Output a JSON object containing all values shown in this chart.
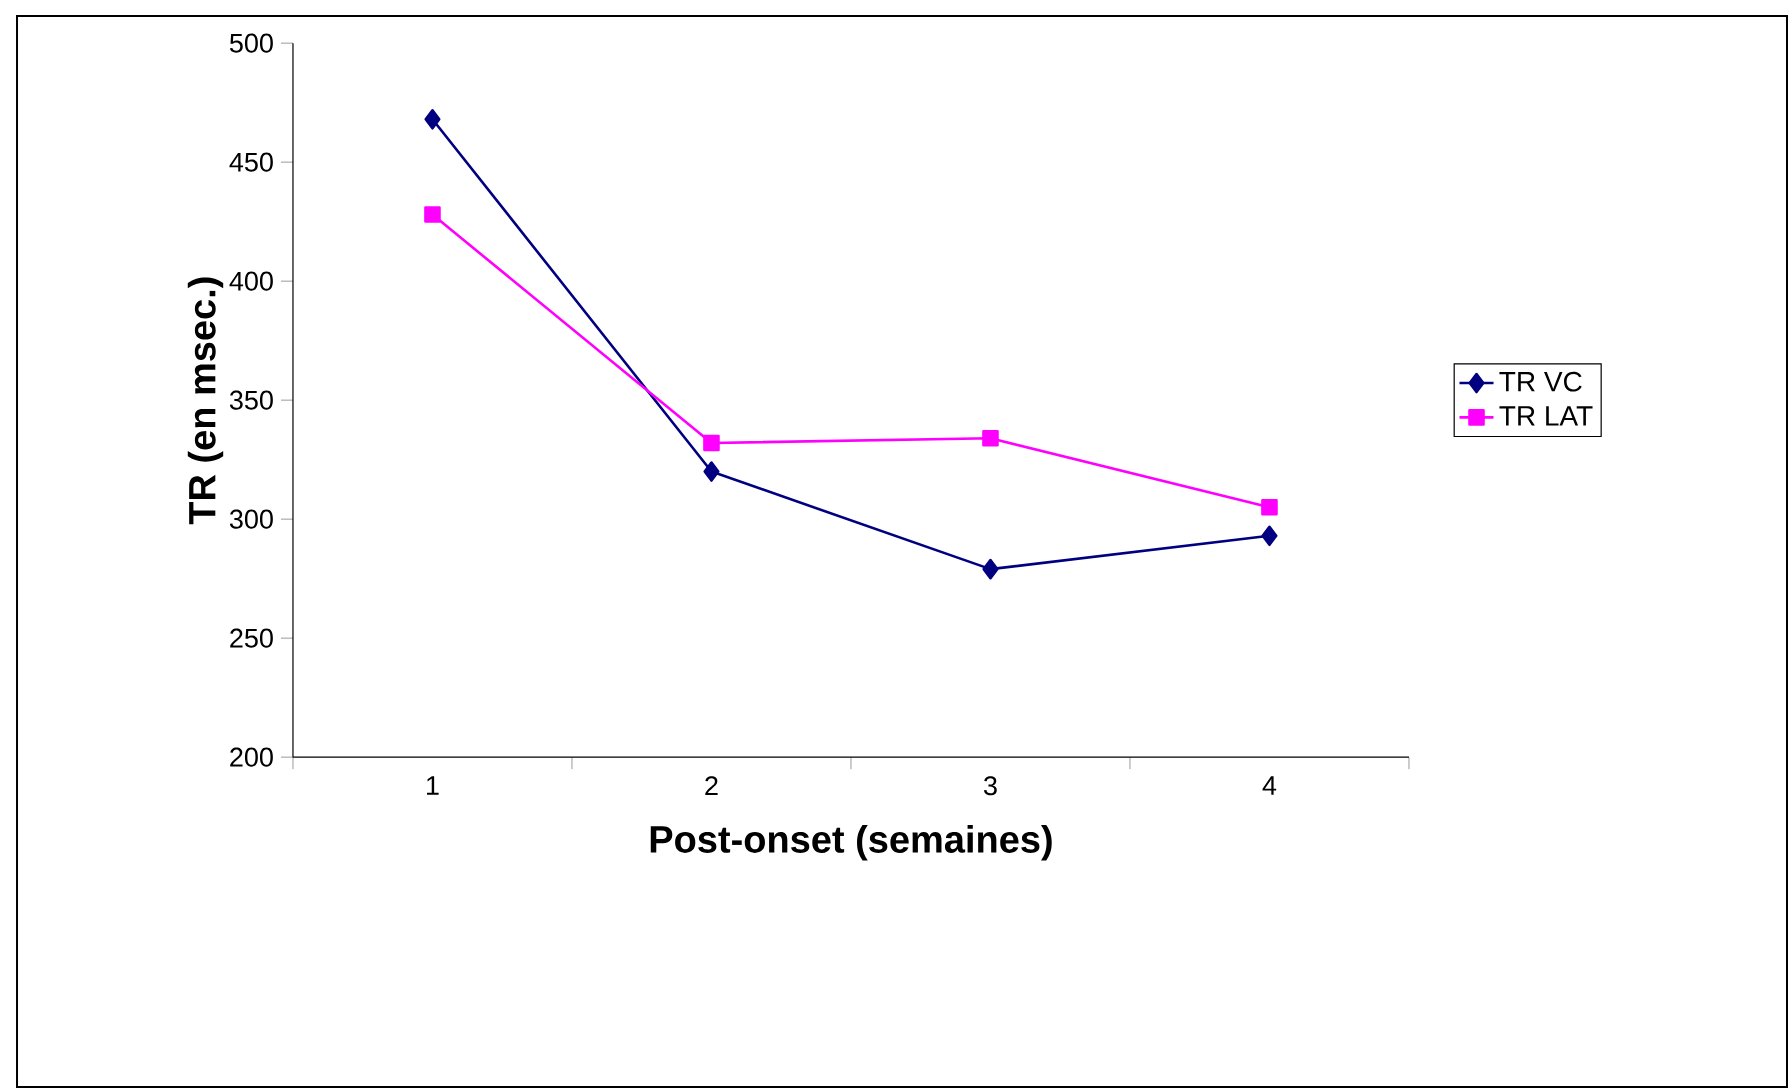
{
  "chart_data": {
    "type": "line",
    "xlabel": "Post-onset (semaines)",
    "ylabel": "TR (en msec.)",
    "categories": [
      "1",
      "2",
      "3",
      "4"
    ],
    "series": [
      {
        "name": "TR VC",
        "color": "#000080",
        "marker": "diamond",
        "values": [
          468,
          320,
          279,
          293
        ]
      },
      {
        "name": "TR LAT",
        "color": "#ff00ff",
        "marker": "square",
        "values": [
          428,
          332,
          334,
          305
        ]
      }
    ],
    "ylim": [
      200,
      500
    ],
    "yticks": [
      200,
      250,
      300,
      350,
      400,
      450,
      500
    ],
    "grid": false,
    "legend": "right"
  }
}
